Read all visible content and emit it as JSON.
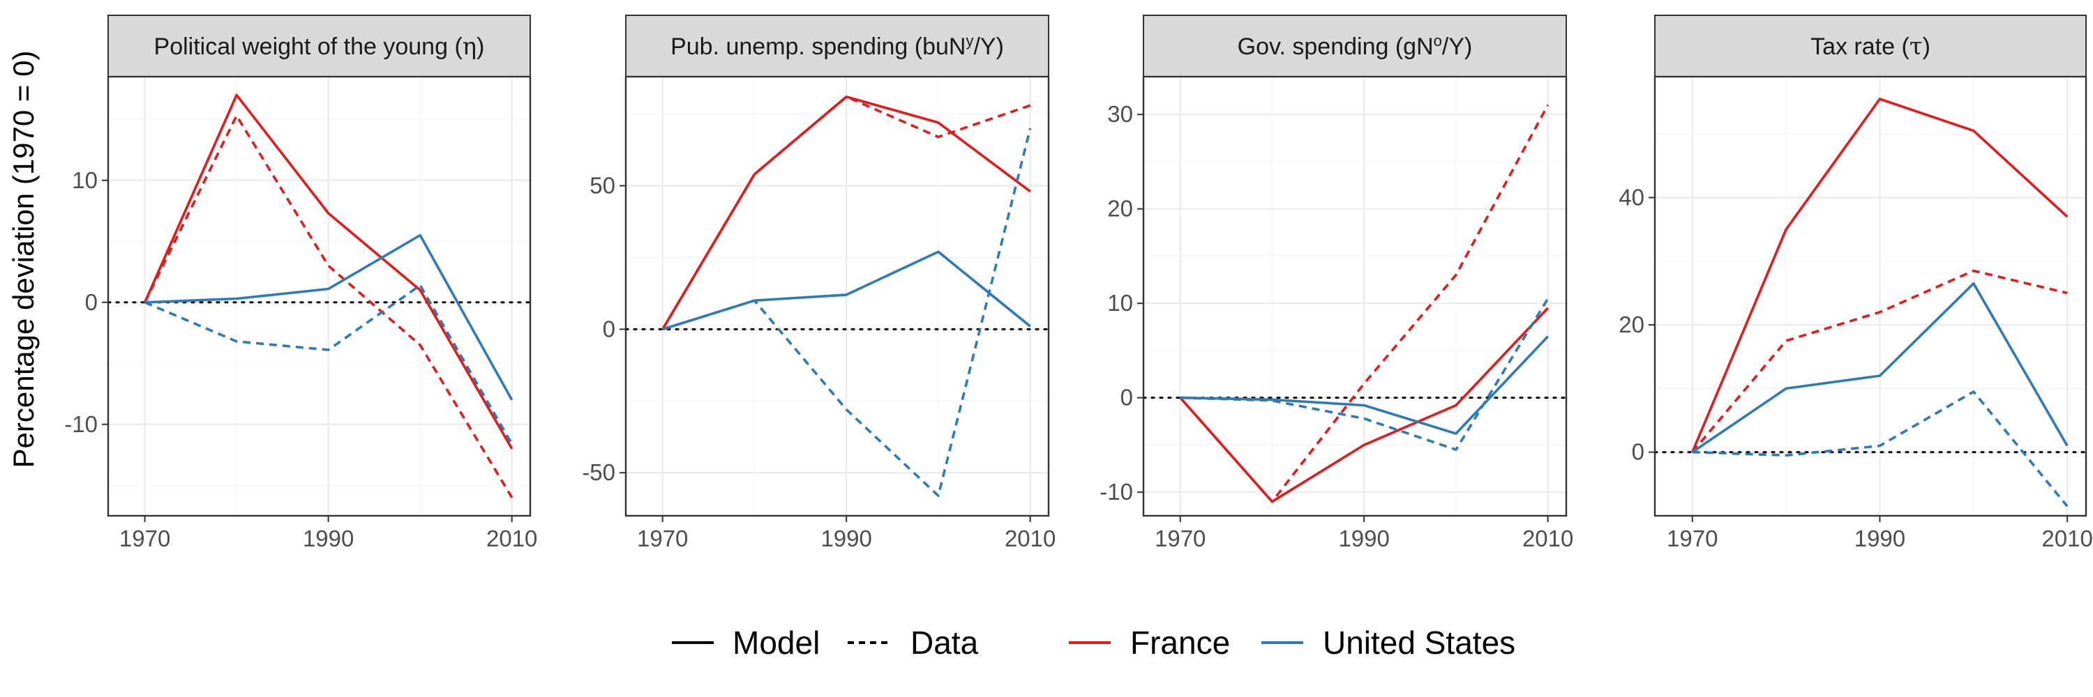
{
  "figure": {
    "ylabel": "Percentage deviation (1970 = 0)",
    "legend": {
      "linetype_items": [
        {
          "label": "Model",
          "dash": "solid"
        },
        {
          "label": "Data",
          "dash": "dashed"
        }
      ],
      "color_items": [
        {
          "label": "France",
          "color": "#e41a1c"
        },
        {
          "label": "United States",
          "color": "#2e7ab6"
        }
      ],
      "position": "bottom"
    }
  },
  "chart_data": [
    {
      "type": "line",
      "title": {
        "pre": "Political weight of the young (",
        "sym": "η",
        "post": ")"
      },
      "x": [
        1970,
        1980,
        1990,
        2000,
        2010
      ],
      "xticks": [
        1970,
        1990,
        2010
      ],
      "xlim": [
        1966,
        2012
      ],
      "ylim": [
        -17.5,
        18.5
      ],
      "yticks": [
        -10,
        0,
        10
      ],
      "grid": true,
      "series": [
        {
          "country": "France",
          "kind": "Model",
          "color": "#e41a1c",
          "dash": "solid",
          "values": [
            0,
            17,
            7.3,
            1.0,
            -12
          ]
        },
        {
          "country": "France",
          "kind": "Data",
          "color": "#e41a1c",
          "dash": "dashed",
          "values": [
            0,
            15.3,
            3.0,
            -3.5,
            -16
          ]
        },
        {
          "country": "United States",
          "kind": "Model",
          "color": "#2e7ab6",
          "dash": "solid",
          "values": [
            0,
            0.3,
            1.1,
            5.5,
            -8
          ]
        },
        {
          "country": "United States",
          "kind": "Data",
          "color": "#2e7ab6",
          "dash": "dashed",
          "values": [
            0,
            -3.2,
            -3.9,
            1.4,
            -11.6
          ]
        }
      ]
    },
    {
      "type": "line",
      "title": {
        "pre": "Pub. unemp. spending (buN",
        "sup": "y",
        "post": "/Y)"
      },
      "x": [
        1970,
        1980,
        1990,
        2000,
        2010
      ],
      "xticks": [
        1970,
        1990,
        2010
      ],
      "xlim": [
        1966,
        2012
      ],
      "ylim": [
        -65,
        88
      ],
      "yticks": [
        -50,
        0,
        50
      ],
      "grid": true,
      "series": [
        {
          "country": "France",
          "kind": "Model",
          "color": "#e41a1c",
          "dash": "solid",
          "values": [
            0,
            54,
            81,
            72,
            48
          ]
        },
        {
          "country": "France",
          "kind": "Data",
          "color": "#e41a1c",
          "dash": "dashed",
          "values": [
            0,
            54,
            81,
            67,
            78
          ]
        },
        {
          "country": "United States",
          "kind": "Model",
          "color": "#2e7ab6",
          "dash": "solid",
          "values": [
            0,
            10,
            12,
            27,
            1
          ]
        },
        {
          "country": "United States",
          "kind": "Data",
          "color": "#2e7ab6",
          "dash": "dashed",
          "values": [
            0,
            10,
            -28,
            -58,
            70
          ]
        }
      ]
    },
    {
      "type": "line",
      "title": {
        "pre": "Gov. spending (gN",
        "sup": "o",
        "post": "/Y)"
      },
      "x": [
        1970,
        1980,
        1990,
        2000,
        2010
      ],
      "xticks": [
        1970,
        1990,
        2010
      ],
      "xlim": [
        1966,
        2012
      ],
      "ylim": [
        -12.5,
        34
      ],
      "yticks": [
        -10,
        0,
        10,
        20,
        30
      ],
      "grid": true,
      "series": [
        {
          "country": "France",
          "kind": "Model",
          "color": "#e41a1c",
          "dash": "solid",
          "values": [
            0,
            -11,
            -5,
            -0.8,
            9.5
          ]
        },
        {
          "country": "France",
          "kind": "Data",
          "color": "#e41a1c",
          "dash": "dashed",
          "values": [
            0,
            -11,
            1.5,
            13,
            31
          ]
        },
        {
          "country": "United States",
          "kind": "Model",
          "color": "#2e7ab6",
          "dash": "solid",
          "values": [
            0,
            -0.2,
            -0.8,
            -3.8,
            6.5
          ]
        },
        {
          "country": "United States",
          "kind": "Data",
          "color": "#2e7ab6",
          "dash": "dashed",
          "values": [
            0,
            -0.3,
            -2.2,
            -5.5,
            10.5
          ]
        }
      ]
    },
    {
      "type": "line",
      "title": {
        "pre": "Tax rate (",
        "sym": "τ",
        "post": ")"
      },
      "x": [
        1970,
        1980,
        1990,
        2000,
        2010
      ],
      "xticks": [
        1970,
        1990,
        2010
      ],
      "xlim": [
        1966,
        2012
      ],
      "ylim": [
        -10,
        59
      ],
      "yticks": [
        0,
        20,
        40
      ],
      "grid": true,
      "series": [
        {
          "country": "France",
          "kind": "Model",
          "color": "#e41a1c",
          "dash": "solid",
          "values": [
            0,
            35,
            55.5,
            50.5,
            37
          ]
        },
        {
          "country": "France",
          "kind": "Data",
          "color": "#e41a1c",
          "dash": "dashed",
          "values": [
            0,
            17.5,
            22,
            28.5,
            25
          ]
        },
        {
          "country": "United States",
          "kind": "Model",
          "color": "#2e7ab6",
          "dash": "solid",
          "values": [
            0,
            10,
            12,
            26.5,
            1
          ]
        },
        {
          "country": "United States",
          "kind": "Data",
          "color": "#2e7ab6",
          "dash": "dashed",
          "values": [
            0,
            -0.5,
            1,
            9.5,
            -8.5
          ]
        }
      ]
    }
  ]
}
